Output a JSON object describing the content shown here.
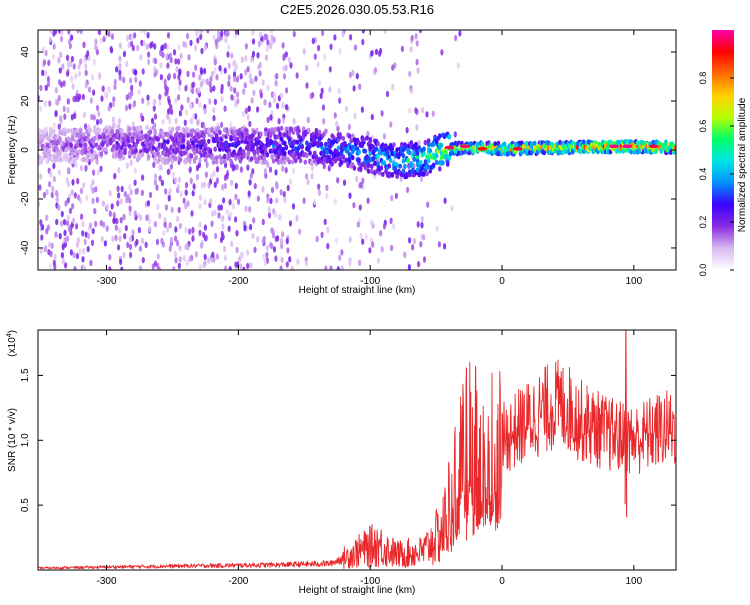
{
  "figure_title": "C2E5.2026.030.05.53.R16",
  "chart_data": [
    {
      "type": "heatmap",
      "title": "C2E5.2026.030.05.53.R16",
      "xlabel": "Height of straight line (km)",
      "ylabel": "Frequency (Hz)",
      "xlim": [
        -352,
        132
      ],
      "ylim": [
        -49,
        49
      ],
      "x_ticks": [
        -300,
        -200,
        -100,
        0,
        100
      ],
      "x_tick_labels": [
        "-300",
        "-200",
        "-100",
        "0",
        "100"
      ],
      "y_ticks": [
        -40,
        -20,
        0,
        20,
        40
      ],
      "y_tick_labels": [
        "-40",
        "-20",
        "0",
        "20",
        "40"
      ],
      "colorbar": {
        "label": "Normalized spectral amplitude",
        "range": [
          0,
          1
        ],
        "ticks": [
          0.0,
          0.2,
          0.4,
          0.6,
          0.8
        ],
        "tick_labels": [
          "0.0",
          "0.2",
          "0.4",
          "0.6",
          "0.8"
        ],
        "colormap": [
          "#ffffff",
          "#d8b8f0",
          "#8a2be2",
          "#3a00ff",
          "#0090ff",
          "#00e5e5",
          "#00ff66",
          "#b8ff00",
          "#ffd000",
          "#ff6a00",
          "#ff0000",
          "#ff00aa"
        ]
      },
      "ridge": [
        {
          "x": -350,
          "f": 1.5,
          "amp": 0.15
        },
        {
          "x": -300,
          "f": 3.0,
          "amp": 0.22
        },
        {
          "x": -250,
          "f": 2.0,
          "amp": 0.25
        },
        {
          "x": -200,
          "f": 2.0,
          "amp": 0.3
        },
        {
          "x": -150,
          "f": 2.0,
          "amp": 0.35
        },
        {
          "x": -120,
          "f": 0.0,
          "amp": 0.4
        },
        {
          "x": -100,
          "f": -2.0,
          "amp": 0.45
        },
        {
          "x": -80,
          "f": -4.5,
          "amp": 0.5
        },
        {
          "x": -60,
          "f": -3.5,
          "amp": 0.55
        },
        {
          "x": -40,
          "f": 0.5,
          "amp": 0.7
        },
        {
          "x": -20,
          "f": 1.0,
          "amp": 0.75
        },
        {
          "x": 0,
          "f": 0.5,
          "amp": 0.75
        },
        {
          "x": 50,
          "f": 1.0,
          "amp": 0.8
        },
        {
          "x": 90,
          "f": 1.5,
          "amp": 0.9
        },
        {
          "x": 130,
          "f": 1.0,
          "amp": 0.8
        }
      ]
    },
    {
      "type": "line",
      "title": "",
      "xlabel": "Height of straight line (km)",
      "ylabel": "SNR (10 * v/v)",
      "scale_label": "(x10",
      "scale_exponent": "4",
      "scale_suffix": ")",
      "xlim": [
        -352,
        132
      ],
      "ylim": [
        0,
        18500
      ],
      "x_ticks": [
        -300,
        -200,
        -100,
        0,
        100
      ],
      "x_tick_labels": [
        "-300",
        "-200",
        "-100",
        "0",
        "100"
      ],
      "y_ticks": [
        5000,
        10000,
        15000
      ],
      "y_tick_labels": [
        "0.5",
        "1.0",
        "1.5"
      ],
      "color": "#e8282b",
      "envelope": [
        {
          "x": -352,
          "y": 150
        },
        {
          "x": -250,
          "y": 300
        },
        {
          "x": -170,
          "y": 400
        },
        {
          "x": -130,
          "y": 500
        },
        {
          "x": -110,
          "y": 1400
        },
        {
          "x": -95,
          "y": 2000
        },
        {
          "x": -80,
          "y": 1200
        },
        {
          "x": -60,
          "y": 1400
        },
        {
          "x": -45,
          "y": 3000
        },
        {
          "x": -35,
          "y": 7000
        },
        {
          "x": -25,
          "y": 9500
        },
        {
          "x": -18,
          "y": 8000
        },
        {
          "x": -10,
          "y": 9500
        },
        {
          "x": 0,
          "y": 10000
        },
        {
          "x": 20,
          "y": 11500
        },
        {
          "x": 40,
          "y": 12800
        },
        {
          "x": 50,
          "y": 12500
        },
        {
          "x": 60,
          "y": 11500
        },
        {
          "x": 80,
          "y": 10500
        },
        {
          "x": 100,
          "y": 10000
        },
        {
          "x": 120,
          "y": 10800
        },
        {
          "x": 132,
          "y": 11000
        }
      ],
      "spikes": [
        {
          "x": -27,
          "y": 15600
        },
        {
          "x": -20,
          "y": 15700
        },
        {
          "x": 94,
          "y": 18500
        }
      ]
    }
  ]
}
